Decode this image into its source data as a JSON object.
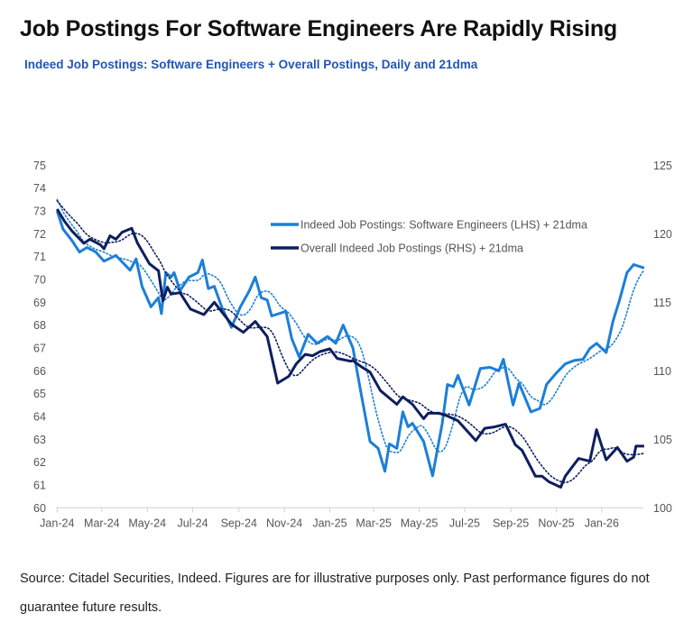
{
  "title": "Job Postings For Software Engineers Are Rapidly Rising",
  "subtitle": "Indeed Job Postings: Software Engineers + Overall Postings, Daily and 21dma",
  "source": "Source: Citadel Securities, Indeed. Figures are for illustrative purposes only. Past performance figures do not guarantee future results.",
  "colors": {
    "software": "#1c7fd6",
    "overall": "#0e1f5e",
    "subtitle": "#1f56b4"
  },
  "chart_data": {
    "type": "line",
    "grid": false,
    "legend_position": "top-center",
    "x_ticks": [
      "Jan-24",
      "Mar-24",
      "May-24",
      "Jul-24",
      "Sep-24",
      "Nov-24",
      "Jan-25",
      "Mar-25",
      "May-25",
      "Jul-25",
      "Sep-25",
      "Nov-25",
      "Jan-26"
    ],
    "x_tick_dates": [
      "2024-01-01",
      "2024-03-01",
      "2024-05-01",
      "2024-07-01",
      "2024-09-01",
      "2024-11-01",
      "2025-01-01",
      "2025-03-01",
      "2025-05-01",
      "2025-07-01",
      "2025-09-01",
      "2025-11-01",
      "2026-01-01"
    ],
    "y_left": {
      "range": [
        60,
        75
      ],
      "ticks": [
        "60",
        "61",
        "62",
        "63",
        "64",
        "65",
        "66",
        "67",
        "68",
        "69",
        "70",
        "71",
        "72",
        "73",
        "74",
        "75"
      ]
    },
    "y_right": {
      "range": [
        100,
        125
      ],
      "ticks": [
        "100",
        "105",
        "110",
        "115",
        "120",
        "125"
      ]
    },
    "series": [
      {
        "name": "Indeed Job Postings: Software Engineers (LHS) + 21dma",
        "axis": "left",
        "smoothing": "21dma dotted",
        "points": [
          [
            "2024-01-01",
            73.0
          ],
          [
            "2024-01-09",
            72.2
          ],
          [
            "2024-01-21",
            71.7
          ],
          [
            "2024-01-31",
            71.2
          ],
          [
            "2024-02-10",
            71.4
          ],
          [
            "2024-02-22",
            71.2
          ],
          [
            "2024-03-04",
            70.8
          ],
          [
            "2024-03-20",
            71.05
          ],
          [
            "2024-04-08",
            70.4
          ],
          [
            "2024-04-16",
            70.9
          ],
          [
            "2024-04-24",
            69.7
          ],
          [
            "2024-05-06",
            68.8
          ],
          [
            "2024-05-16",
            69.2
          ],
          [
            "2024-05-20",
            68.5
          ],
          [
            "2024-05-26",
            70.3
          ],
          [
            "2024-06-02",
            70.1
          ],
          [
            "2024-06-06",
            70.3
          ],
          [
            "2024-06-14",
            69.5
          ],
          [
            "2024-06-26",
            70.1
          ],
          [
            "2024-07-08",
            70.3
          ],
          [
            "2024-07-14",
            70.85
          ],
          [
            "2024-07-22",
            69.6
          ],
          [
            "2024-07-30",
            69.7
          ],
          [
            "2024-08-10",
            68.7
          ],
          [
            "2024-08-22",
            67.9
          ],
          [
            "2024-09-03",
            68.8
          ],
          [
            "2024-09-15",
            69.5
          ],
          [
            "2024-09-23",
            70.1
          ],
          [
            "2024-10-01",
            69.2
          ],
          [
            "2024-10-09",
            69.1
          ],
          [
            "2024-10-15",
            68.4
          ],
          [
            "2024-11-03",
            68.6
          ],
          [
            "2024-11-11",
            67.4
          ],
          [
            "2024-11-21",
            66.6
          ],
          [
            "2024-12-03",
            67.6
          ],
          [
            "2024-12-15",
            67.2
          ],
          [
            "2024-12-29",
            67.5
          ],
          [
            "2025-01-09",
            67.2
          ],
          [
            "2025-01-19",
            68.0
          ],
          [
            "2025-02-01",
            67.0
          ],
          [
            "2025-02-12",
            65.0
          ],
          [
            "2025-02-24",
            62.9
          ],
          [
            "2025-03-07",
            62.6
          ],
          [
            "2025-03-16",
            61.6
          ],
          [
            "2025-03-22",
            62.8
          ],
          [
            "2025-04-01",
            62.6
          ],
          [
            "2025-04-09",
            64.2
          ],
          [
            "2025-04-16",
            63.55
          ],
          [
            "2025-04-22",
            63.7
          ],
          [
            "2025-05-07",
            62.9
          ],
          [
            "2025-05-19",
            61.4
          ],
          [
            "2025-06-01",
            63.7
          ],
          [
            "2025-06-08",
            65.4
          ],
          [
            "2025-06-16",
            65.3
          ],
          [
            "2025-06-22",
            65.8
          ],
          [
            "2025-07-07",
            64.5
          ],
          [
            "2025-07-22",
            66.1
          ],
          [
            "2025-08-04",
            66.15
          ],
          [
            "2025-08-16",
            66.0
          ],
          [
            "2025-08-22",
            66.5
          ],
          [
            "2025-09-04",
            64.5
          ],
          [
            "2025-09-12",
            65.45
          ],
          [
            "2025-09-28",
            64.2
          ],
          [
            "2025-10-10",
            64.35
          ],
          [
            "2025-10-19",
            65.4
          ],
          [
            "2025-11-01",
            65.9
          ],
          [
            "2025-11-13",
            66.3
          ],
          [
            "2025-11-25",
            66.45
          ],
          [
            "2025-12-07",
            66.5
          ],
          [
            "2025-12-16",
            66.97
          ],
          [
            "2025-12-25",
            67.2
          ],
          [
            "2026-01-07",
            66.8
          ],
          [
            "2026-01-16",
            68.15
          ],
          [
            "2026-01-25",
            69.1
          ],
          [
            "2026-02-04",
            70.3
          ],
          [
            "2026-02-13",
            70.65
          ],
          [
            "2026-02-27",
            70.5
          ]
        ]
      },
      {
        "name": "Overall Indeed Job Postings (RHS) + 21dma",
        "axis": "right",
        "smoothing": "21dma dotted",
        "points": [
          [
            "2024-01-01",
            121.8
          ],
          [
            "2024-01-11",
            120.9
          ],
          [
            "2024-01-21",
            120.2
          ],
          [
            "2024-02-06",
            119.3
          ],
          [
            "2024-02-14",
            119.6
          ],
          [
            "2024-02-28",
            119.2
          ],
          [
            "2024-03-04",
            118.9
          ],
          [
            "2024-03-12",
            119.85
          ],
          [
            "2024-03-20",
            119.6
          ],
          [
            "2024-03-28",
            120.1
          ],
          [
            "2024-04-10",
            120.4
          ],
          [
            "2024-04-18",
            119.3
          ],
          [
            "2024-05-04",
            117.8
          ],
          [
            "2024-05-16",
            117.3
          ],
          [
            "2024-05-22",
            115.1
          ],
          [
            "2024-05-28",
            116.1
          ],
          [
            "2024-06-02",
            115.6
          ],
          [
            "2024-06-14",
            115.7
          ],
          [
            "2024-06-28",
            114.5
          ],
          [
            "2024-07-16",
            114.1
          ],
          [
            "2024-07-30",
            115.0
          ],
          [
            "2024-08-22",
            113.4
          ],
          [
            "2024-09-07",
            112.8
          ],
          [
            "2024-09-23",
            113.6
          ],
          [
            "2024-10-09",
            112.5
          ],
          [
            "2024-10-23",
            109.1
          ],
          [
            "2024-11-07",
            109.6
          ],
          [
            "2024-11-17",
            110.5
          ],
          [
            "2024-11-29",
            111.2
          ],
          [
            "2024-12-09",
            111.1
          ],
          [
            "2024-12-19",
            111.4
          ],
          [
            "2025-01-01",
            111.6
          ],
          [
            "2025-01-11",
            110.9
          ],
          [
            "2025-01-29",
            110.7
          ],
          [
            "2025-02-01",
            110.75
          ],
          [
            "2025-02-12",
            110.3
          ],
          [
            "2025-02-24",
            109.9
          ],
          [
            "2025-03-10",
            108.55
          ],
          [
            "2025-04-01",
            107.55
          ],
          [
            "2025-04-09",
            108.1
          ],
          [
            "2025-04-22",
            107.55
          ],
          [
            "2025-05-07",
            106.5
          ],
          [
            "2025-05-13",
            106.9
          ],
          [
            "2025-05-28",
            106.9
          ],
          [
            "2025-06-08",
            106.7
          ],
          [
            "2025-06-22",
            106.35
          ],
          [
            "2025-07-16",
            104.9
          ],
          [
            "2025-07-28",
            105.8
          ],
          [
            "2025-08-10",
            105.9
          ],
          [
            "2025-08-25",
            106.1
          ],
          [
            "2025-09-07",
            104.6
          ],
          [
            "2025-09-16",
            104.2
          ],
          [
            "2025-10-04",
            102.3
          ],
          [
            "2025-10-13",
            102.3
          ],
          [
            "2025-10-22",
            101.9
          ],
          [
            "2025-11-07",
            101.5
          ],
          [
            "2025-11-13",
            102.3
          ],
          [
            "2025-12-01",
            103.6
          ],
          [
            "2025-12-16",
            103.4
          ],
          [
            "2025-12-25",
            105.7
          ],
          [
            "2026-01-07",
            103.5
          ],
          [
            "2026-01-22",
            104.4
          ],
          [
            "2026-02-04",
            103.4
          ],
          [
            "2026-02-13",
            103.7
          ],
          [
            "2026-02-16",
            104.5
          ],
          [
            "2026-02-27",
            104.5
          ]
        ]
      }
    ]
  }
}
